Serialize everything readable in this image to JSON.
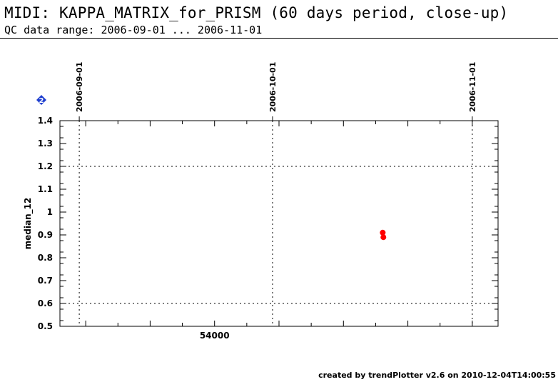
{
  "header": {
    "title": "MIDI: KAPPA_MATRIX_for_PRISM (60 days period, close-up)",
    "subtitle": "QC data range: 2006-09-01 ... 2006-11-01"
  },
  "footer": {
    "text": "created by trendPlotter v2.6 on 2010-12-04T14:00:55"
  },
  "badge": {
    "label": "2",
    "color": "#1f3fcf"
  },
  "chart_data": {
    "type": "scatter",
    "title": "MIDI: KAPPA_MATRIX_for_PRISM (60 days period, close-up)",
    "ylabel": "median_12",
    "xlabel": "",
    "xlim": [
      53976.0,
      54044.0
    ],
    "ylim": [
      0.5,
      1.4
    ],
    "x_ticks": [
      54000
    ],
    "x_tick_labels": [
      "54000"
    ],
    "y_ticks": [
      0.5,
      0.6,
      0.7,
      0.8,
      0.9,
      1.0,
      1.1,
      1.2,
      1.3,
      1.4
    ],
    "y_tick_labels": [
      "0.5",
      "0.6",
      "0.7",
      "0.8",
      "0.9",
      "1",
      "1.1",
      "1.2",
      "1.3",
      "1.4"
    ],
    "date_markers": [
      {
        "mjd": 53979,
        "label": "2006-09-01"
      },
      {
        "mjd": 54009,
        "label": "2006-10-01"
      },
      {
        "mjd": 54040,
        "label": "2006-11-01"
      }
    ],
    "hlines": [
      0.6,
      1.2
    ],
    "grid": false,
    "series": [
      {
        "color": "#ff0000",
        "points": [
          {
            "x": 54026.1,
            "y": 0.91
          },
          {
            "x": 54026.2,
            "y": 0.89
          }
        ]
      }
    ]
  }
}
